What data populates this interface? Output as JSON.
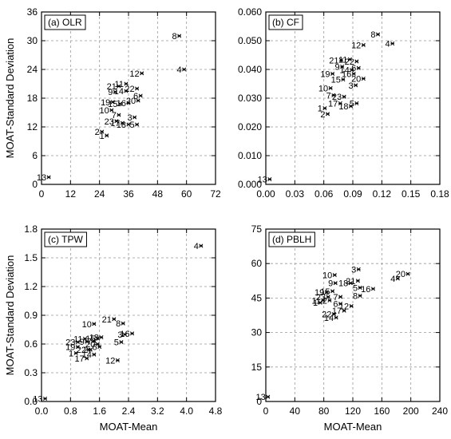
{
  "chart_data": [
    {
      "type": "scatter",
      "panel_label": "(a) OLR",
      "xlim": [
        0,
        72
      ],
      "ylim": [
        0,
        36
      ],
      "xticks": [
        "0",
        "12",
        "24",
        "36",
        "48",
        "60",
        "72"
      ],
      "yticks": [
        "0",
        "6",
        "12",
        "18",
        "24",
        "30",
        "36"
      ],
      "xlabel": "",
      "ylabel": "MOAT-Standard Deviation",
      "grid": true,
      "points": [
        {
          "label": "1",
          "x": 27,
          "y": 10.2
        },
        {
          "label": "2",
          "x": 25,
          "y": 11.0
        },
        {
          "label": "3",
          "x": 38.5,
          "y": 14.0
        },
        {
          "label": "4",
          "x": 59,
          "y": 24.0
        },
        {
          "label": "5",
          "x": 39.5,
          "y": 12.5
        },
        {
          "label": "6",
          "x": 41,
          "y": 18.5
        },
        {
          "label": "7",
          "x": 32,
          "y": 14.5
        },
        {
          "label": "8",
          "x": 57,
          "y": 31.0
        },
        {
          "label": "9",
          "x": 30.5,
          "y": 19.3
        },
        {
          "label": "10",
          "x": 29,
          "y": 15.5
        },
        {
          "label": "11",
          "x": 35,
          "y": 21.0
        },
        {
          "label": "12",
          "x": 41.5,
          "y": 23.2
        },
        {
          "label": "13",
          "x": 3,
          "y": 1.5
        },
        {
          "label": "14",
          "x": 35,
          "y": 19.5
        },
        {
          "label": "15",
          "x": 32.5,
          "y": 16.8
        },
        {
          "label": "16",
          "x": 36,
          "y": 17.0
        },
        {
          "label": "17",
          "x": 33.5,
          "y": 12.8
        },
        {
          "label": "18",
          "x": 36,
          "y": 12.5
        },
        {
          "label": "19",
          "x": 29.5,
          "y": 17.2
        },
        {
          "label": "20",
          "x": 40,
          "y": 17.5
        },
        {
          "label": "21",
          "x": 32,
          "y": 20.5
        },
        {
          "label": "22",
          "x": 39.5,
          "y": 20.0
        },
        {
          "label": "23",
          "x": 31,
          "y": 13.2
        }
      ]
    },
    {
      "type": "scatter",
      "panel_label": "(b) CF",
      "xlim": [
        0,
        0.18
      ],
      "ylim": [
        0,
        0.06
      ],
      "xticks": [
        "0.00",
        "0.03",
        "0.06",
        "0.09",
        "0.12",
        "0.15",
        "0.18"
      ],
      "yticks": [
        "0.000",
        "0.010",
        "0.020",
        "0.030",
        "0.040",
        "0.050",
        "0.060"
      ],
      "xlabel": "",
      "ylabel": "",
      "grid": true,
      "points": [
        {
          "label": "1",
          "x": 0.061,
          "y": 0.0265
        },
        {
          "label": "2",
          "x": 0.064,
          "y": 0.0245
        },
        {
          "label": "3",
          "x": 0.093,
          "y": 0.0345
        },
        {
          "label": "4",
          "x": 0.131,
          "y": 0.049
        },
        {
          "label": "5",
          "x": 0.094,
          "y": 0.0282
        },
        {
          "label": "6",
          "x": 0.096,
          "y": 0.0405
        },
        {
          "label": "7",
          "x": 0.07,
          "y": 0.031
        },
        {
          "label": "8",
          "x": 0.116,
          "y": 0.0522
        },
        {
          "label": "9",
          "x": 0.079,
          "y": 0.041
        },
        {
          "label": "10",
          "x": 0.067,
          "y": 0.0335
        },
        {
          "label": "11",
          "x": 0.087,
          "y": 0.0435
        },
        {
          "label": "12",
          "x": 0.101,
          "y": 0.0485
        },
        {
          "label": "13",
          "x": 0.004,
          "y": 0.0018
        },
        {
          "label": "14",
          "x": 0.089,
          "y": 0.0398
        },
        {
          "label": "15",
          "x": 0.08,
          "y": 0.0365
        },
        {
          "label": "16",
          "x": 0.091,
          "y": 0.0385
        },
        {
          "label": "17",
          "x": 0.077,
          "y": 0.0282
        },
        {
          "label": "18",
          "x": 0.088,
          "y": 0.0272
        },
        {
          "label": "19",
          "x": 0.069,
          "y": 0.0385
        },
        {
          "label": "20",
          "x": 0.101,
          "y": 0.0368
        },
        {
          "label": "21",
          "x": 0.078,
          "y": 0.0432
        },
        {
          "label": "22",
          "x": 0.094,
          "y": 0.0428
        },
        {
          "label": "23",
          "x": 0.081,
          "y": 0.0305
        }
      ]
    },
    {
      "type": "scatter",
      "panel_label": "(c) TPW",
      "xlim": [
        0,
        4.8
      ],
      "ylim": [
        0,
        1.8
      ],
      "xticks": [
        "0.0",
        "0.8",
        "1.6",
        "2.4",
        "3.2",
        "4.0",
        "4.8"
      ],
      "yticks": [
        "0.0",
        "0.3",
        "0.6",
        "0.9",
        "1.2",
        "1.5",
        "1.8"
      ],
      "xlabel": "MOAT-Mean",
      "ylabel": "MOAT-Standard Deviation",
      "grid": true,
      "points": [
        {
          "label": "1",
          "x": 0.95,
          "y": 0.505
        },
        {
          "label": "2",
          "x": 1.35,
          "y": 0.54
        },
        {
          "label": "3",
          "x": 2.3,
          "y": 0.7
        },
        {
          "label": "4",
          "x": 4.4,
          "y": 1.625
        },
        {
          "label": "5",
          "x": 2.2,
          "y": 0.62
        },
        {
          "label": "6",
          "x": 1.6,
          "y": 0.57
        },
        {
          "label": "7",
          "x": 1.45,
          "y": 0.63
        },
        {
          "label": "8",
          "x": 2.25,
          "y": 0.815
        },
        {
          "label": "9",
          "x": 1.25,
          "y": 0.625
        },
        {
          "label": "10",
          "x": 1.45,
          "y": 0.81
        },
        {
          "label": "11",
          "x": 1.2,
          "y": 0.655
        },
        {
          "label": "12",
          "x": 2.1,
          "y": 0.43
        },
        {
          "label": "13",
          "x": 0.1,
          "y": 0.03
        },
        {
          "label": "14",
          "x": 1.45,
          "y": 0.49
        },
        {
          "label": "15",
          "x": 1.55,
          "y": 0.66
        },
        {
          "label": "16",
          "x": 2.5,
          "y": 0.71
        },
        {
          "label": "17",
          "x": 1.25,
          "y": 0.45
        },
        {
          "label": "18",
          "x": 1.65,
          "y": 0.67
        },
        {
          "label": "19",
          "x": 1.0,
          "y": 0.57
        },
        {
          "label": "20",
          "x": 1.55,
          "y": 0.6
        },
        {
          "label": "21",
          "x": 2.0,
          "y": 0.86
        },
        {
          "label": "22",
          "x": 1.3,
          "y": 0.54
        },
        {
          "label": "23",
          "x": 1.0,
          "y": 0.62
        }
      ]
    },
    {
      "type": "scatter",
      "panel_label": "(d) PBLH",
      "xlim": [
        0,
        240
      ],
      "ylim": [
        0,
        75
      ],
      "xticks": [
        "0",
        "40",
        "80",
        "120",
        "160",
        "200",
        "240"
      ],
      "yticks": [
        "0",
        "15",
        "30",
        "45",
        "60",
        "75"
      ],
      "xlabel": "MOAT-Mean",
      "ylabel": "",
      "grid": true,
      "points": [
        {
          "label": "1",
          "x": 75,
          "y": 43.0
        },
        {
          "label": "2",
          "x": 88,
          "y": 44.0
        },
        {
          "label": "3",
          "x": 128,
          "y": 57.5
        },
        {
          "label": "4",
          "x": 182,
          "y": 53.5
        },
        {
          "label": "5",
          "x": 130,
          "y": 49.5
        },
        {
          "label": "6",
          "x": 103,
          "y": 42.5
        },
        {
          "label": "7",
          "x": 103,
          "y": 45.5
        },
        {
          "label": "8",
          "x": 130,
          "y": 46.0
        },
        {
          "label": "9",
          "x": 96,
          "y": 51.5
        },
        {
          "label": "10",
          "x": 95,
          "y": 55.0
        },
        {
          "label": "11",
          "x": 79,
          "y": 44.0
        },
        {
          "label": "12",
          "x": 118,
          "y": 41.5
        },
        {
          "label": "13",
          "x": 3,
          "y": 2.0
        },
        {
          "label": "14",
          "x": 97,
          "y": 36.5
        },
        {
          "label": "15",
          "x": 92,
          "y": 48.0
        },
        {
          "label": "16",
          "x": 148,
          "y": 49.0
        },
        {
          "label": "17",
          "x": 108,
          "y": 39.5
        },
        {
          "label": "18",
          "x": 117,
          "y": 51.5
        },
        {
          "label": "19",
          "x": 84,
          "y": 47.5
        },
        {
          "label": "20",
          "x": 196,
          "y": 55.5
        },
        {
          "label": "21",
          "x": 127,
          "y": 52.5
        },
        {
          "label": "22",
          "x": 94,
          "y": 38.0
        },
        {
          "label": "23",
          "x": 86,
          "y": 45.5
        }
      ]
    }
  ]
}
